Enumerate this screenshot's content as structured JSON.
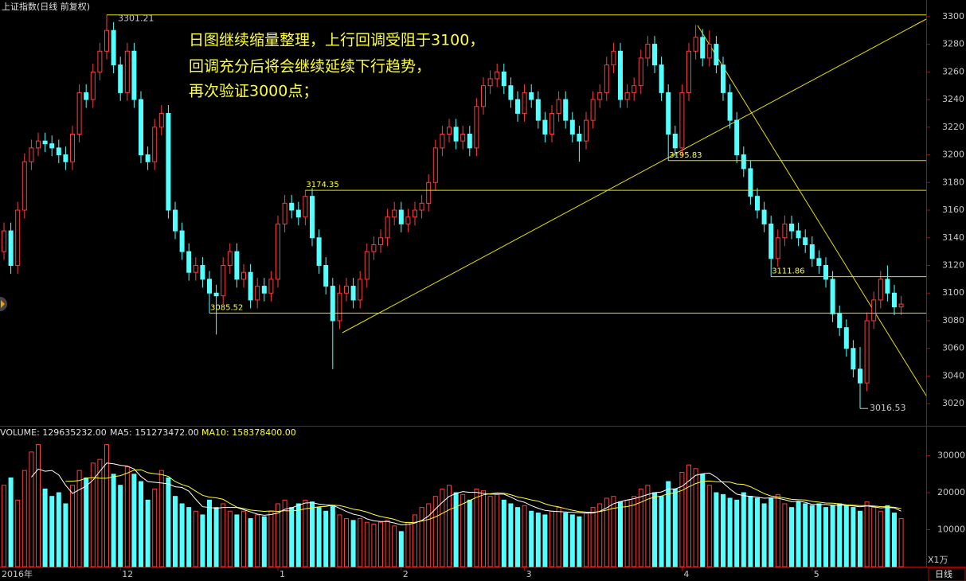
{
  "chart_data": {
    "type": "candlestick",
    "title": "上证指数(日线 前复权)",
    "annotation": [
      "日图继续缩量整理，上行回调受阻于3100，",
      "回调充分后将会继续延续下行趋势，",
      "再次验证3000点；"
    ],
    "period_label": "日线",
    "categories": [
      "2016年",
      null,
      null,
      null,
      null,
      null,
      null,
      null,
      null,
      null,
      null,
      null,
      null,
      null,
      null,
      null,
      null,
      "12",
      null,
      null,
      null,
      null,
      null,
      null,
      null,
      null,
      null,
      null,
      null,
      null,
      null,
      null,
      null,
      null,
      null,
      null,
      null,
      null,
      null,
      null,
      "1",
      null,
      null,
      null,
      null,
      null,
      null,
      null,
      null,
      null,
      null,
      null,
      null,
      null,
      null,
      null,
      null,
      null,
      "2",
      null,
      null,
      null,
      null,
      null,
      null,
      null,
      null,
      null,
      null,
      null,
      null,
      null,
      null,
      null,
      null,
      null,
      "3",
      null,
      null,
      null,
      null,
      null,
      null,
      null,
      null,
      null,
      null,
      null,
      null,
      null,
      null,
      null,
      null,
      null,
      null,
      null,
      null,
      null,
      null,
      "4",
      null,
      null,
      null,
      null,
      null,
      null,
      null,
      null,
      null,
      null,
      null,
      null,
      null,
      null,
      null,
      null,
      null,
      null,
      "5",
      null,
      null,
      null,
      null,
      null,
      null,
      null,
      null,
      null,
      null,
      null,
      null,
      null
    ],
    "candles": [
      [
        3130,
        3151,
        3124,
        3145
      ],
      [
        3145,
        3151,
        3114,
        3120
      ],
      [
        3120,
        3166,
        3114,
        3160
      ],
      [
        3160,
        3201,
        3154,
        3195
      ],
      [
        3195,
        3211,
        3189,
        3205
      ],
      [
        3205,
        3216,
        3199,
        3210
      ],
      [
        3210,
        3216,
        3202,
        3208
      ],
      [
        3208,
        3214,
        3199,
        3205
      ],
      [
        3205,
        3211,
        3194,
        3200
      ],
      [
        3200,
        3206,
        3189,
        3195
      ],
      [
        3195,
        3221,
        3189,
        3215
      ],
      [
        3215,
        3251,
        3209,
        3245
      ],
      [
        3245,
        3251,
        3234,
        3240
      ],
      [
        3240,
        3266,
        3234,
        3260
      ],
      [
        3260,
        3281,
        3254,
        3275
      ],
      [
        3275,
        3301.21,
        3269,
        3290
      ],
      [
        3290,
        3296,
        3259,
        3265
      ],
      [
        3265,
        3271,
        3239,
        3245
      ],
      [
        3245,
        3281,
        3239,
        3275
      ],
      [
        3275,
        3281,
        3234,
        3240
      ],
      [
        3240,
        3246,
        3194,
        3200
      ],
      [
        3200,
        3206,
        3189,
        3195
      ],
      [
        3195,
        3226,
        3189,
        3220
      ],
      [
        3220,
        3236,
        3214,
        3230
      ],
      [
        3230,
        3236,
        3154,
        3160
      ],
      [
        3160,
        3166,
        3139,
        3145
      ],
      [
        3145,
        3151,
        3124,
        3130
      ],
      [
        3130,
        3136,
        3109,
        3115
      ],
      [
        3115,
        3126,
        3109,
        3120
      ],
      [
        3120,
        3126,
        3104,
        3110
      ],
      [
        3110,
        3116,
        3085.52,
        3100
      ],
      [
        3100,
        3106,
        3070,
        3098
      ],
      [
        3098,
        3126,
        3092,
        3120
      ],
      [
        3120,
        3136,
        3114,
        3130
      ],
      [
        3130,
        3136,
        3104,
        3110
      ],
      [
        3110,
        3121,
        3104,
        3115
      ],
      [
        3115,
        3121,
        3089,
        3095
      ],
      [
        3095,
        3111,
        3089,
        3105
      ],
      [
        3105,
        3111,
        3094,
        3100
      ],
      [
        3100,
        3116,
        3094,
        3110
      ],
      [
        3110,
        3156,
        3104,
        3150
      ],
      [
        3150,
        3171,
        3144,
        3165
      ],
      [
        3165,
        3171,
        3154,
        3160
      ],
      [
        3160,
        3166,
        3149,
        3155
      ],
      [
        3155,
        3174.35,
        3149,
        3170
      ],
      [
        3170,
        3176,
        3134,
        3140
      ],
      [
        3140,
        3146,
        3114,
        3120
      ],
      [
        3120,
        3126,
        3099,
        3105
      ],
      [
        3105,
        3111,
        3045,
        3080
      ],
      [
        3080,
        3106,
        3074,
        3100
      ],
      [
        3100,
        3111,
        3094,
        3105
      ],
      [
        3105,
        3111,
        3089,
        3095
      ],
      [
        3095,
        3116,
        3089,
        3110
      ],
      [
        3110,
        3136,
        3104,
        3130
      ],
      [
        3130,
        3141,
        3124,
        3135
      ],
      [
        3135,
        3146,
        3129,
        3140
      ],
      [
        3140,
        3161,
        3134,
        3155
      ],
      [
        3155,
        3166,
        3149,
        3160
      ],
      [
        3160,
        3166,
        3144,
        3150
      ],
      [
        3150,
        3161,
        3144,
        3155
      ],
      [
        3155,
        3166,
        3149,
        3160
      ],
      [
        3160,
        3171,
        3154,
        3165
      ],
      [
        3165,
        3186,
        3159,
        3180
      ],
      [
        3180,
        3211,
        3174,
        3205
      ],
      [
        3205,
        3221,
        3199,
        3215
      ],
      [
        3215,
        3226,
        3209,
        3220
      ],
      [
        3220,
        3226,
        3204,
        3210
      ],
      [
        3210,
        3221,
        3204,
        3215
      ],
      [
        3215,
        3221,
        3199,
        3205
      ],
      [
        3205,
        3241,
        3199,
        3235
      ],
      [
        3235,
        3256,
        3229,
        3250
      ],
      [
        3250,
        3261,
        3244,
        3255
      ],
      [
        3255,
        3266,
        3249,
        3260
      ],
      [
        3260,
        3266,
        3244,
        3250
      ],
      [
        3250,
        3256,
        3234,
        3240
      ],
      [
        3240,
        3246,
        3224,
        3230
      ],
      [
        3230,
        3251,
        3224,
        3245
      ],
      [
        3245,
        3251,
        3234,
        3240
      ],
      [
        3240,
        3246,
        3219,
        3225
      ],
      [
        3225,
        3231,
        3209,
        3215
      ],
      [
        3215,
        3236,
        3209,
        3230
      ],
      [
        3230,
        3246,
        3224,
        3240
      ],
      [
        3240,
        3246,
        3219,
        3225
      ],
      [
        3225,
        3231,
        3209,
        3215
      ],
      [
        3215,
        3221,
        3195,
        3210
      ],
      [
        3210,
        3231,
        3204,
        3225
      ],
      [
        3225,
        3246,
        3219,
        3240
      ],
      [
        3240,
        3251,
        3234,
        3245
      ],
      [
        3245,
        3271,
        3239,
        3265
      ],
      [
        3265,
        3281,
        3259,
        3275
      ],
      [
        3275,
        3281,
        3234,
        3240
      ],
      [
        3240,
        3251,
        3234,
        3245
      ],
      [
        3245,
        3256,
        3239,
        3250
      ],
      [
        3250,
        3276,
        3244,
        3270
      ],
      [
        3270,
        3286,
        3264,
        3280
      ],
      [
        3280,
        3286,
        3259,
        3265
      ],
      [
        3265,
        3271,
        3239,
        3245
      ],
      [
        3245,
        3251,
        3195.83,
        3215
      ],
      [
        3215,
        3221,
        3199,
        3205
      ],
      [
        3205,
        3251,
        3199,
        3245
      ],
      [
        3245,
        3281,
        3239,
        3275
      ],
      [
        3275,
        3294,
        3269,
        3285
      ],
      [
        3285,
        3291,
        3264,
        3270
      ],
      [
        3270,
        3290,
        3264,
        3280
      ],
      [
        3280,
        3286,
        3259,
        3265
      ],
      [
        3265,
        3271,
        3239,
        3245
      ],
      [
        3245,
        3251,
        3219,
        3225
      ],
      [
        3225,
        3231,
        3194,
        3200
      ],
      [
        3200,
        3206,
        3184,
        3190
      ],
      [
        3190,
        3196,
        3164,
        3170
      ],
      [
        3170,
        3176,
        3154,
        3160
      ],
      [
        3160,
        3166,
        3144,
        3150
      ],
      [
        3150,
        3156,
        3111.86,
        3125
      ],
      [
        3125,
        3146,
        3119,
        3140
      ],
      [
        3140,
        3156,
        3134,
        3150
      ],
      [
        3150,
        3156,
        3139,
        3145
      ],
      [
        3145,
        3151,
        3134,
        3140
      ],
      [
        3140,
        3146,
        3129,
        3135
      ],
      [
        3135,
        3141,
        3119,
        3125
      ],
      [
        3125,
        3131,
        3114,
        3120
      ],
      [
        3120,
        3126,
        3104,
        3110
      ],
      [
        3110,
        3116,
        3079,
        3085
      ],
      [
        3085,
        3091,
        3069,
        3075
      ],
      [
        3075,
        3081,
        3054,
        3060
      ],
      [
        3060,
        3066,
        3039,
        3045
      ],
      [
        3045,
        3061,
        3016.53,
        3035
      ],
      [
        3035,
        3086,
        3029,
        3080
      ],
      [
        3080,
        3101,
        3074,
        3095
      ],
      [
        3095,
        3116,
        3089,
        3110
      ],
      [
        3110,
        3120,
        3094,
        3100
      ],
      [
        3100,
        3106,
        3084,
        3090
      ],
      [
        3090,
        3098,
        3084,
        3092
      ]
    ],
    "ylim": [
      3004,
      3312
    ],
    "yticks": [
      3020,
      3040,
      3060,
      3080,
      3100,
      3120,
      3140,
      3160,
      3180,
      3200,
      3220,
      3240,
      3260,
      3280,
      3300
    ],
    "up_color": "#ff3c3c",
    "down_color": "#54ffff",
    "volume": {
      "label": "VOLUME: 129635232.00",
      "ma5_label": "MA5: 151273472.00",
      "ma10_label": "MA10: 158378400.00",
      "unit_label": "X1万",
      "values": [
        22000,
        24000,
        18000,
        26000,
        31000,
        33000,
        21000,
        19000,
        20000,
        17000,
        22000,
        26000,
        24000,
        28000,
        29000,
        33000,
        25000,
        22000,
        27000,
        25000,
        23000,
        18000,
        21000,
        26000,
        24000,
        19000,
        17000,
        16000,
        15000,
        14000,
        18000,
        16000,
        17000,
        15000,
        14000,
        15000,
        13000,
        14000,
        13500,
        15000,
        17000,
        18000,
        16000,
        17000,
        18000,
        17500,
        16000,
        15000,
        16500,
        14000,
        13000,
        12500,
        13000,
        12000,
        11500,
        12000,
        12500,
        11000,
        9500,
        12000,
        14000,
        16000,
        17000,
        19000,
        21000,
        22000,
        20000,
        19500,
        18000,
        21000,
        20500,
        19000,
        19500,
        18000,
        17000,
        16000,
        16500,
        15000,
        14500,
        14000,
        15000,
        16000,
        14500,
        14000,
        13500,
        14500,
        16000,
        17000,
        18500,
        19000,
        17500,
        18000,
        19000,
        21000,
        22000,
        20000,
        19000,
        23000,
        21000,
        25500,
        27500,
        26500,
        25000,
        22000,
        20000,
        19500,
        18500,
        18000,
        20000,
        19000,
        18500,
        17000,
        18500,
        19500,
        17000,
        16000,
        17500,
        17000,
        16500,
        17000,
        16000,
        16500,
        17000,
        16500,
        16000,
        15000,
        17500,
        16000,
        15000,
        16500,
        14500,
        13000
      ],
      "ylim": [
        0,
        37000
      ],
      "yticks": [
        10000,
        20000,
        30000
      ]
    }
  }
}
